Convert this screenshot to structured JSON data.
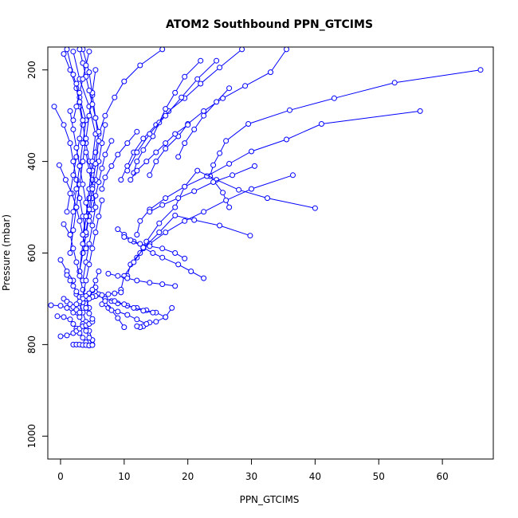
{
  "chart_data": {
    "type": "line",
    "title": "ATOM2 Southbound PPN_GTCIMS",
    "xlabel": "PPN_GTCIMS",
    "ylabel": "Pressure (mbar)",
    "xlim": [
      -2,
      68
    ],
    "ylim": [
      1050,
      150
    ],
    "y_reversed": true,
    "xticks": [
      0,
      10,
      20,
      30,
      40,
      50,
      60
    ],
    "yticks": [
      200,
      400,
      600,
      800,
      1000
    ],
    "grid": false,
    "legend": "none",
    "markers": "open-circle",
    "series_color": "#0000ff",
    "series": [
      {
        "x": [
          66.0,
          52.5,
          43.0,
          36.0,
          29.5,
          26.0,
          25.0,
          24.0,
          23.5,
          25.5,
          26.5
        ],
        "y": [
          200,
          228,
          262,
          288,
          318,
          355,
          382,
          408,
          432,
          468,
          500
        ]
      },
      {
        "x": [
          56.5,
          41.0,
          35.5,
          30.0,
          26.5,
          23.0,
          19.5,
          16.5,
          14.0,
          12.5,
          12.0
        ],
        "y": [
          290,
          318,
          352,
          378,
          405,
          432,
          455,
          480,
          505,
          530,
          560
        ]
      },
      {
        "x": [
          40.0,
          32.5,
          28.0,
          24.5,
          21.5,
          19.5,
          18.0,
          15.5,
          13.5,
          12.0
        ],
        "y": [
          502,
          480,
          462,
          440,
          420,
          455,
          500,
          535,
          575,
          610
        ]
      },
      {
        "x": [
          36.5,
          30.0,
          26.0,
          22.5,
          19.5,
          16.5,
          14.0,
          12.5,
          11.0,
          10.5
        ],
        "y": [
          430,
          460,
          485,
          510,
          530,
          555,
          580,
          600,
          625,
          650
        ]
      },
      {
        "x": [
          29.8,
          25.0,
          21.0,
          18.0,
          15.5,
          13.0,
          11.5,
          10.0,
          9.5
        ],
        "y": [
          562,
          540,
          528,
          518,
          555,
          590,
          620,
          650,
          680
        ]
      },
      {
        "x": [
          35.5,
          33.0,
          29.0,
          25.5,
          22.5,
          20.0,
          18.5,
          16.5,
          15.0,
          14.0
        ],
        "y": [
          155,
          205,
          235,
          262,
          290,
          318,
          345,
          372,
          400,
          430
        ]
      },
      {
        "x": [
          28.5,
          25.0,
          22.0,
          19.5,
          17.0,
          15.0,
          13.0,
          11.5,
          10.5,
          9.5
        ],
        "y": [
          155,
          195,
          230,
          262,
          290,
          320,
          350,
          380,
          410,
          440
        ]
      },
      {
        "x": [
          22.0,
          19.5,
          18.0,
          16.5,
          15.5,
          14.5,
          13.0,
          12.0,
          11.5
        ],
        "y": [
          180,
          215,
          250,
          285,
          315,
          345,
          375,
          400,
          425
        ]
      },
      {
        "x": [
          16.0,
          12.5,
          10.0,
          8.5,
          7.0,
          6.0,
          5.5,
          5.0
        ],
        "y": [
          155,
          190,
          225,
          260,
          300,
          340,
          380,
          420
        ]
      },
      {
        "x": [
          22.5,
          20.5,
          18.5,
          16.0,
          14.5,
          13.0,
          11.5,
          10.0,
          9.0
        ],
        "y": [
          655,
          640,
          625,
          610,
          600,
          588,
          575,
          560,
          548
        ]
      },
      {
        "x": [
          19.5,
          18.0,
          16.0,
          14.0,
          12.5,
          11.0,
          10.0
        ],
        "y": [
          612,
          600,
          590,
          585,
          580,
          572,
          565
        ]
      },
      {
        "x": [
          18.0,
          16.0,
          14.0,
          12.0,
          10.5,
          9.0,
          7.5
        ],
        "y": [
          672,
          668,
          665,
          660,
          655,
          650,
          645
        ]
      },
      {
        "x": [
          17.5,
          16.5,
          15.0,
          14.0,
          13.0,
          12.5,
          12.0
        ],
        "y": [
          720,
          740,
          750,
          752,
          760,
          762,
          760
        ]
      },
      {
        "x": [
          16.5,
          15.0,
          13.5,
          12.0,
          10.5,
          9.0,
          8.0
        ],
        "y": [
          740,
          730,
          725,
          720,
          715,
          710,
          705
        ]
      },
      {
        "x": [
          14.5,
          13.0,
          11.5,
          10.0,
          8.5,
          7.0
        ],
        "y": [
          730,
          726,
          720,
          712,
          705,
          700
        ]
      },
      {
        "x": [
          13.5,
          12.0,
          10.5,
          9.0,
          7.5,
          6.5
        ],
        "y": [
          755,
          745,
          735,
          728,
          720,
          712
        ]
      },
      {
        "x": [
          10.0,
          9.0,
          8.0,
          7.0,
          6.0,
          5.5
        ],
        "y": [
          762,
          742,
          725,
          705,
          690,
          675
        ]
      },
      {
        "x": [
          9.5,
          8.5,
          7.5,
          6.5,
          5.5,
          5.0
        ],
        "y": [
          686,
          688,
          690,
          692,
          694,
          696
        ]
      },
      {
        "x": [
          26.5,
          24.5,
          22.5,
          21.0,
          19.5,
          18.5
        ],
        "y": [
          240,
          270,
          300,
          330,
          360,
          390
        ]
      },
      {
        "x": [
          30.5,
          27.0,
          24.0,
          21.0,
          18.5,
          16.0,
          14.0
        ],
        "y": [
          410,
          430,
          445,
          465,
          480,
          495,
          510
        ]
      },
      {
        "x": [
          24.5,
          21.5,
          19.0,
          16.5,
          14.0,
          12.0,
          10.5
        ],
        "y": [
          180,
          220,
          260,
          300,
          340,
          380,
          420
        ]
      },
      {
        "x": [
          12.0,
          10.5,
          9.0,
          8.0,
          7.0,
          6.5
        ],
        "y": [
          335,
          360,
          385,
          410,
          435,
          460
        ]
      },
      {
        "x": [
          20.0,
          18.0,
          16.5,
          15.0,
          13.5,
          12.0,
          11.0
        ],
        "y": [
          320,
          340,
          360,
          380,
          400,
          420,
          440
        ]
      },
      {
        "x": [
          8.0,
          7.0,
          6.5,
          6.0,
          5.5,
          5.0
        ],
        "y": [
          355,
          385,
          415,
          445,
          475,
          505
        ]
      },
      {
        "x": [
          7.0,
          6.5,
          6.0,
          5.5,
          5.0,
          4.5,
          4.0,
          3.5
        ],
        "y": [
          320,
          360,
          400,
          440,
          480,
          520,
          560,
          600
        ]
      },
      {
        "x": [
          0.5,
          1.5,
          2.5,
          3.0,
          3.5,
          4.0,
          4.5,
          5.0,
          4.5,
          4.0,
          3.5
        ],
        "y": [
          165,
          200,
          240,
          280,
          320,
          360,
          400,
          440,
          480,
          520,
          560
        ]
      },
      {
        "x": [
          -1.0,
          0.5,
          1.5,
          2.0,
          2.5,
          3.0,
          3.5,
          4.0,
          3.5,
          3.0
        ],
        "y": [
          280,
          320,
          360,
          400,
          440,
          480,
          520,
          560,
          600,
          640
        ]
      },
      {
        "x": [
          1.0,
          2.0,
          3.0,
          4.0,
          3.5,
          3.0,
          2.5,
          2.0,
          1.5
        ],
        "y": [
          155,
          210,
          260,
          310,
          360,
          410,
          460,
          510,
          560
        ]
      },
      {
        "x": [
          2.0,
          3.0,
          4.5,
          5.5,
          5.0,
          4.5,
          4.0,
          3.5,
          3.0
        ],
        "y": [
          160,
          220,
          280,
          340,
          400,
          460,
          520,
          580,
          640
        ]
      },
      {
        "x": [
          3.5,
          4.5,
          5.0,
          5.5,
          6.0,
          5.5,
          5.0,
          4.5,
          4.0
        ],
        "y": [
          155,
          205,
          255,
          305,
          355,
          405,
          455,
          505,
          555
        ]
      },
      {
        "x": [
          -0.2,
          0.8,
          1.8,
          2.5,
          3.0,
          3.5,
          4.0
        ],
        "y": [
          408,
          440,
          470,
          500,
          530,
          560,
          590
        ]
      },
      {
        "x": [
          0.5,
          1.5,
          2.0,
          2.5,
          3.0,
          3.5,
          4.0,
          4.5
        ],
        "y": [
          537,
          560,
          590,
          620,
          650,
          680,
          700,
          720
        ]
      },
      {
        "x": [
          0.0,
          1.0,
          2.0,
          2.5,
          3.0,
          3.5,
          4.0,
          4.5,
          5.0
        ],
        "y": [
          615,
          640,
          660,
          690,
          710,
          730,
          750,
          770,
          790
        ]
      },
      {
        "x": [
          -1.5,
          0.0,
          1.0,
          2.0,
          3.0,
          3.5,
          4.0,
          4.5,
          5.0
        ],
        "y": [
          714,
          715,
          720,
          730,
          740,
          755,
          770,
          785,
          800
        ]
      },
      {
        "x": [
          -0.5,
          0.5,
          1.5,
          2.0,
          2.5,
          3.0,
          3.5,
          4.0,
          4.5
        ],
        "y": [
          738,
          740,
          745,
          755,
          765,
          775,
          785,
          795,
          802
        ]
      },
      {
        "x": [
          0.0,
          1.0,
          2.0,
          2.5,
          3.0,
          3.5,
          4.0,
          4.5,
          5.0
        ],
        "y": [
          782,
          780,
          775,
          770,
          765,
          760,
          758,
          755,
          750
        ]
      },
      {
        "x": [
          2.0,
          2.5,
          3.0,
          3.5,
          4.0,
          4.5,
          5.0
        ],
        "y": [
          800,
          800,
          800,
          801,
          801,
          802,
          801
        ]
      },
      {
        "x": [
          1.0,
          1.5,
          2.0,
          2.5,
          3.0,
          3.5,
          4.0,
          4.5,
          5.0
        ],
        "y": [
          648,
          660,
          672,
          684,
          696,
          708,
          720,
          732,
          744
        ]
      },
      {
        "x": [
          5.5,
          5.0,
          4.5,
          4.0,
          3.5,
          3.0,
          2.5,
          2.0,
          1.5
        ],
        "y": [
          200,
          250,
          300,
          350,
          400,
          450,
          500,
          550,
          600
        ]
      },
      {
        "x": [
          4.0,
          4.5,
          5.0,
          5.5,
          5.0,
          4.5,
          4.0,
          3.5
        ],
        "y": [
          380,
          420,
          460,
          500,
          540,
          580,
          620,
          660
        ]
      },
      {
        "x": [
          6.5,
          6.0,
          5.5,
          5.0,
          4.5,
          4.0,
          3.5,
          3.0
        ],
        "y": [
          485,
          520,
          555,
          590,
          625,
          660,
          695,
          730
        ]
      },
      {
        "x": [
          2.5,
          3.0,
          3.5,
          3.0,
          2.5,
          2.0,
          1.5,
          1.0
        ],
        "y": [
          230,
          270,
          310,
          350,
          390,
          430,
          470,
          510
        ]
      },
      {
        "x": [
          1.5,
          2.0,
          2.5,
          3.0,
          3.5,
          4.0,
          4.5
        ],
        "y": [
          290,
          330,
          370,
          410,
          450,
          490,
          530
        ]
      },
      {
        "x": [
          3.0,
          3.5,
          4.0,
          4.5,
          5.0,
          5.5,
          6.0
        ],
        "y": [
          155,
          185,
          215,
          245,
          275,
          305,
          335
        ]
      },
      {
        "x": [
          4.5,
          4.0,
          3.5,
          3.0,
          2.5,
          2.0
        ],
        "y": [
          160,
          190,
          220,
          250,
          280,
          310
        ]
      },
      {
        "x": [
          0.5,
          1.0,
          1.5,
          2.0,
          2.5,
          3.0
        ],
        "y": [
          700,
          706,
          712,
          718,
          724,
          730
        ]
      },
      {
        "x": [
          5.0,
          4.5,
          4.0,
          3.5,
          3.0,
          2.5
        ],
        "y": [
          682,
          688,
          694,
          700,
          706,
          712
        ]
      },
      {
        "x": [
          6.0,
          5.5,
          5.0,
          4.5,
          4.0
        ],
        "y": [
          640,
          660,
          680,
          700,
          720
        ]
      }
    ]
  }
}
